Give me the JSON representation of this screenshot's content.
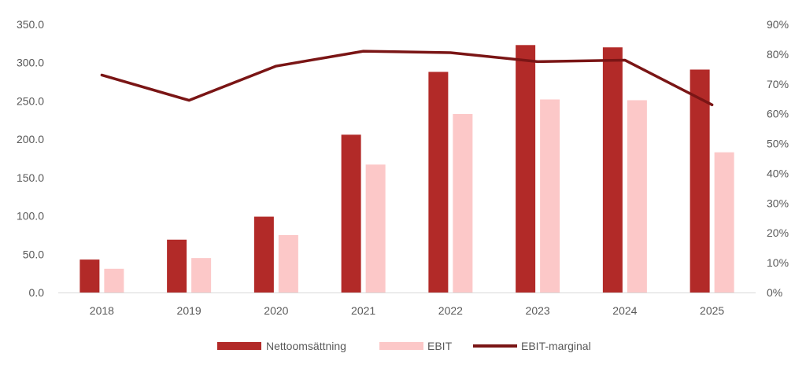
{
  "chart_data": {
    "type": "bar",
    "title": "",
    "xlabel": "",
    "ylabel": "",
    "categories": [
      "2018",
      "2019",
      "2020",
      "2021",
      "2022",
      "2023",
      "2024",
      "2025"
    ],
    "left_axis": {
      "ylim": [
        0,
        350
      ],
      "ticks": [
        "0.0",
        "50.0",
        "100.0",
        "150.0",
        "200.0",
        "250.0",
        "300.0",
        "350.0"
      ]
    },
    "right_axis": {
      "ylim": [
        0,
        0.9
      ],
      "ticks": [
        "0%",
        "10%",
        "20%",
        "30%",
        "40%",
        "50%",
        "60%",
        "70%",
        "80%",
        "90%"
      ]
    },
    "series": [
      {
        "name": "Nettoomsättning",
        "kind": "bar",
        "axis": "left",
        "color": "#b22a28",
        "values": [
          43,
          69,
          99,
          206,
          288,
          323,
          320,
          291
        ]
      },
      {
        "name": "EBIT",
        "kind": "bar",
        "axis": "left",
        "color": "#fcc8c8",
        "values": [
          31,
          45,
          75,
          167,
          233,
          252,
          251,
          183
        ]
      },
      {
        "name": "EBIT-marginal",
        "kind": "line",
        "axis": "right",
        "color": "#7a1515",
        "values": [
          0.73,
          0.645,
          0.76,
          0.81,
          0.805,
          0.775,
          0.78,
          0.63
        ]
      }
    ],
    "grid": false,
    "legend_position": "bottom"
  }
}
